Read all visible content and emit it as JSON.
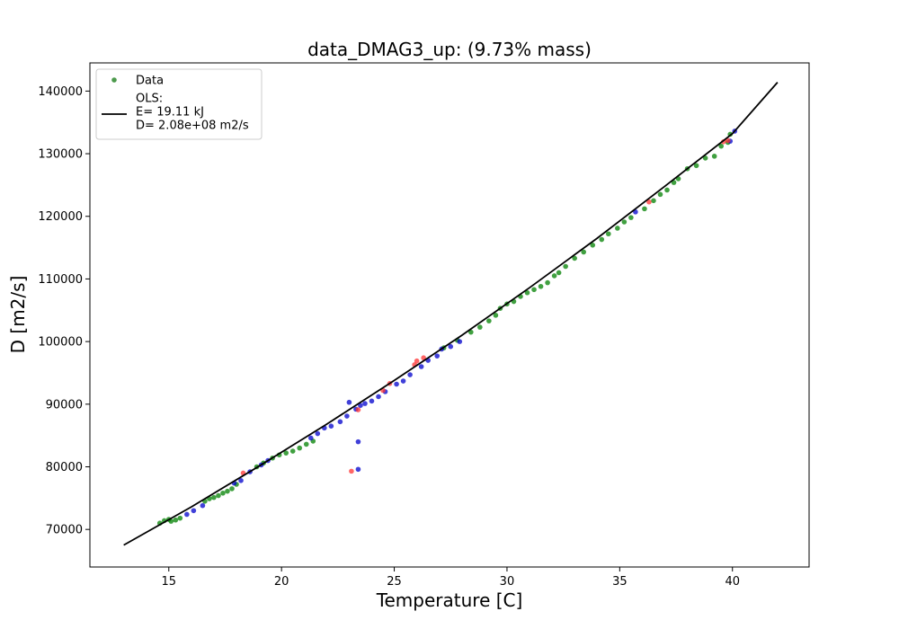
{
  "chart_data": {
    "type": "scatter",
    "title": "data_DMAG3_up: (9.73% mass)",
    "xlabel": "Temperature [C]",
    "ylabel": "D [m2/s]",
    "xlim": [
      11.5,
      43.4
    ],
    "ylim": [
      64000,
      144500
    ],
    "xticks": [
      15,
      20,
      25,
      30,
      35,
      40
    ],
    "yticks": [
      70000,
      80000,
      90000,
      100000,
      110000,
      120000,
      130000,
      140000
    ],
    "grid": false,
    "legend": {
      "placement": "top-left",
      "entries": [
        {
          "label": "Data",
          "marker": "dot",
          "color": "#4c9a4c"
        },
        {
          "label": "OLS:\nE=    19.11 kJ\nD= 2.08e+08 m2/s",
          "marker": "line",
          "color": "#000000"
        }
      ]
    },
    "fit_line": {
      "name": "OLS",
      "color": "#000000",
      "x": [
        13,
        16,
        19,
        22,
        25,
        28,
        31,
        34,
        37,
        40,
        42
      ],
      "y": [
        67500,
        73600,
        80100,
        86800,
        93800,
        101000,
        108600,
        116500,
        124800,
        133200,
        141400
      ]
    },
    "series": [
      {
        "color": "#008000",
        "points": [
          [
            14.6,
            71000
          ],
          [
            14.8,
            71400
          ],
          [
            15.0,
            71600
          ],
          [
            15.1,
            71300
          ],
          [
            15.3,
            71500
          ],
          [
            15.5,
            71800
          ],
          [
            16.6,
            74500
          ],
          [
            16.8,
            74900
          ],
          [
            17.0,
            75100
          ],
          [
            17.2,
            75400
          ],
          [
            17.4,
            75800
          ],
          [
            17.6,
            76100
          ],
          [
            17.8,
            76500
          ],
          [
            18.0,
            77200
          ],
          [
            18.9,
            80000
          ],
          [
            19.2,
            80600
          ],
          [
            19.6,
            81400
          ],
          [
            19.9,
            81900
          ],
          [
            20.2,
            82200
          ],
          [
            20.5,
            82500
          ],
          [
            20.8,
            83000
          ],
          [
            21.1,
            83600
          ],
          [
            21.4,
            84100
          ],
          [
            27.2,
            99000
          ],
          [
            27.8,
            100200
          ],
          [
            28.4,
            101500
          ],
          [
            28.8,
            102300
          ],
          [
            29.2,
            103300
          ],
          [
            29.5,
            104200
          ],
          [
            29.7,
            105300
          ],
          [
            30.0,
            106000
          ],
          [
            30.3,
            106400
          ],
          [
            30.6,
            107200
          ],
          [
            30.9,
            107800
          ],
          [
            31.2,
            108300
          ],
          [
            31.5,
            108800
          ],
          [
            31.8,
            109400
          ],
          [
            32.1,
            110500
          ],
          [
            32.3,
            111000
          ],
          [
            32.6,
            112000
          ],
          [
            33.0,
            113300
          ],
          [
            33.4,
            114300
          ],
          [
            33.8,
            115400
          ],
          [
            34.2,
            116300
          ],
          [
            34.5,
            117200
          ],
          [
            34.9,
            118100
          ],
          [
            35.2,
            119100
          ],
          [
            35.5,
            119800
          ],
          [
            36.1,
            121200
          ],
          [
            36.5,
            122500
          ],
          [
            36.8,
            123500
          ],
          [
            37.1,
            124200
          ],
          [
            37.4,
            125400
          ],
          [
            37.6,
            126000
          ],
          [
            38.0,
            127600
          ],
          [
            38.4,
            128100
          ],
          [
            38.8,
            129300
          ],
          [
            39.2,
            129600
          ],
          [
            39.5,
            131200
          ],
          [
            39.8,
            131800
          ],
          [
            39.9,
            133100
          ]
        ]
      },
      {
        "color": "#0000cc",
        "points": [
          [
            15.8,
            72400
          ],
          [
            16.1,
            73000
          ],
          [
            16.5,
            73800
          ],
          [
            17.9,
            77400
          ],
          [
            18.2,
            77800
          ],
          [
            18.6,
            79200
          ],
          [
            19.1,
            80300
          ],
          [
            19.4,
            81000
          ],
          [
            21.3,
            84600
          ],
          [
            21.6,
            85300
          ],
          [
            21.9,
            86200
          ],
          [
            22.2,
            86500
          ],
          [
            22.6,
            87200
          ],
          [
            22.9,
            88100
          ],
          [
            23.3,
            89200
          ],
          [
            23.5,
            89800
          ],
          [
            23.7,
            90100
          ],
          [
            24.0,
            90500
          ],
          [
            24.3,
            91200
          ],
          [
            24.6,
            92000
          ],
          [
            25.1,
            93200
          ],
          [
            25.4,
            93700
          ],
          [
            25.7,
            94700
          ],
          [
            26.2,
            96000
          ],
          [
            26.5,
            97000
          ],
          [
            26.9,
            97700
          ],
          [
            27.1,
            98800
          ],
          [
            27.5,
            99200
          ],
          [
            27.9,
            100000
          ],
          [
            23.0,
            90300
          ],
          [
            23.4,
            84000
          ],
          [
            23.4,
            79600
          ],
          [
            35.7,
            120700
          ],
          [
            39.9,
            132000
          ],
          [
            40.1,
            133600
          ]
        ]
      },
      {
        "color": "#ff3333",
        "points": [
          [
            18.3,
            79000
          ],
          [
            23.1,
            79300
          ],
          [
            23.4,
            89100
          ],
          [
            24.5,
            92200
          ],
          [
            24.8,
            93300
          ],
          [
            25.9,
            96300
          ],
          [
            26.0,
            96900
          ],
          [
            26.3,
            97400
          ],
          [
            36.3,
            122300
          ],
          [
            39.6,
            131900
          ],
          [
            39.8,
            132100
          ]
        ]
      }
    ]
  }
}
